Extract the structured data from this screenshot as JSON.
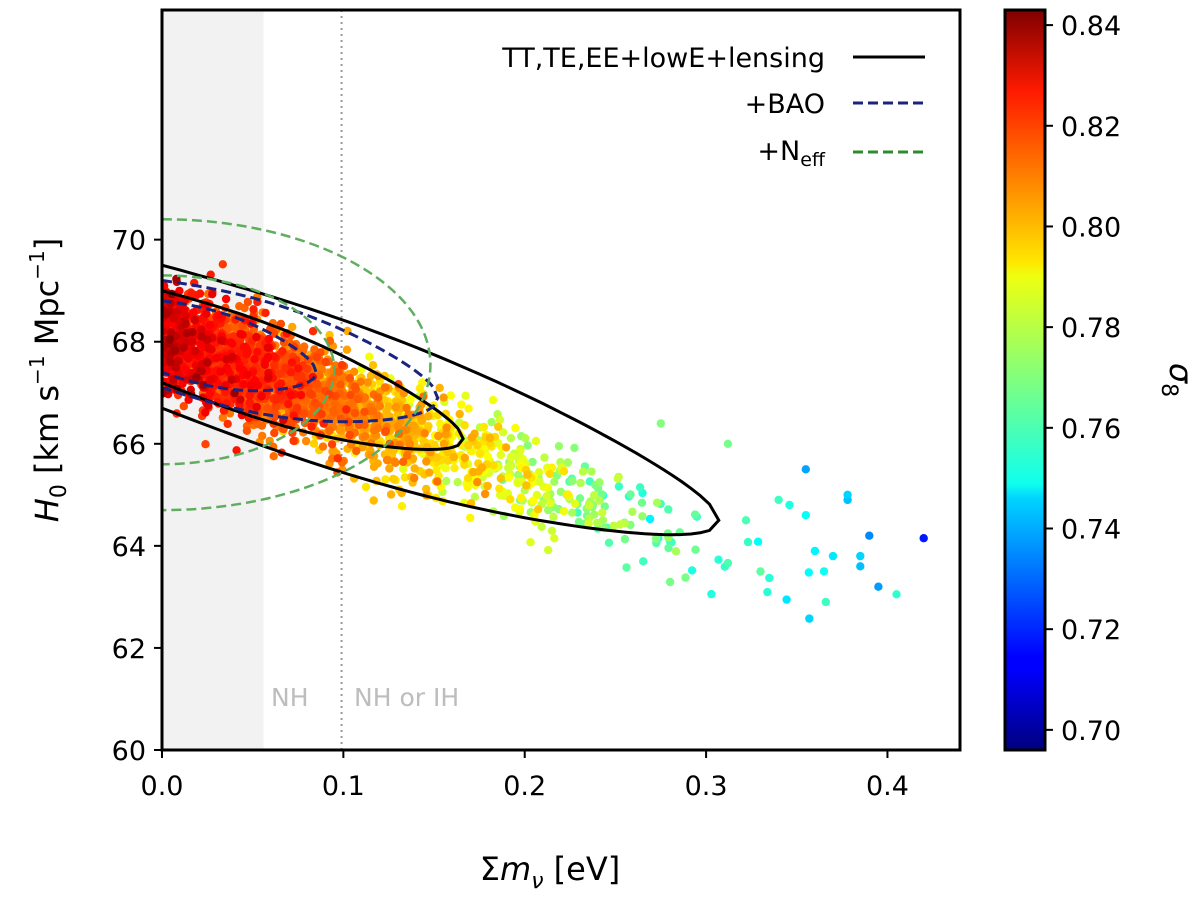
{
  "chart_data": {
    "type": "scatter",
    "xlabel_prefix": "Σ",
    "xlabel_var": "m",
    "xlabel_sub": "ν",
    "xlabel_unit": " [eV]",
    "ylabel_var": "H",
    "ylabel_sub": "0",
    "ylabel_unit": " [km s",
    "ylabel_exp1": "−1",
    "ylabel_mid": " Mpc",
    "ylabel_exp2": "−1",
    "ylabel_close": "]",
    "xlim": [
      0.0,
      0.44
    ],
    "ylim": [
      60,
      74.5
    ],
    "xticks": [
      0.0,
      0.1,
      0.2,
      0.3,
      0.4
    ],
    "xtick_labels": [
      "0.0",
      "0.1",
      "0.2",
      "0.3",
      "0.4"
    ],
    "yticks": [
      60,
      62,
      64,
      66,
      68,
      70
    ],
    "ytick_labels": [
      "60",
      "62",
      "64",
      "66",
      "68",
      "70"
    ],
    "colorbar": {
      "label": "σ",
      "label_sub": "8",
      "range": [
        0.696,
        0.843
      ],
      "ticks": [
        0.7,
        0.72,
        0.74,
        0.76,
        0.78,
        0.8,
        0.82,
        0.84
      ],
      "tick_labels": [
        "0.70",
        "0.72",
        "0.74",
        "0.76",
        "0.78",
        "0.80",
        "0.82",
        "0.84"
      ],
      "colormap": "jet"
    },
    "shaded_region": {
      "x_range": [
        0.0,
        0.056
      ],
      "label": "NH",
      "color": "#f2f2f2"
    },
    "vline": {
      "x": 0.099,
      "label": "NH or IH",
      "color": "#999999"
    },
    "legend": [
      {
        "label": "TT,TE,EE+lowE+lensing",
        "color": "#000000",
        "style": "solid"
      },
      {
        "label": "+BAO",
        "color": "#1a237e",
        "style": "dashed"
      },
      {
        "label": "+N",
        "label_sub": "eff",
        "color": "#2e8b2e",
        "style": "dashed"
      }
    ],
    "contours": [
      {
        "series": "TT,TE,EE+lowE+lensing",
        "level": "68%",
        "x_min": 0.0,
        "x_tip": 0.166,
        "y_tip": 66.1,
        "y_top0": 69.0,
        "y_bot0": 67.2,
        "x_shoulder": 0.04
      },
      {
        "series": "TT,TE,EE+lowE+lensing",
        "level": "95%",
        "x_min": 0.0,
        "x_tip": 0.307,
        "y_tip": 64.5,
        "y_top0": 69.5,
        "y_bot0": 66.7,
        "x_shoulder": 0.06
      },
      {
        "series": "+BAO",
        "level": "68%",
        "x_min": 0.0,
        "x_tip": 0.085,
        "y_tip": 67.4,
        "y_top0": 68.8,
        "y_bot0": 67.4,
        "x_shoulder": 0.03
      },
      {
        "series": "+BAO",
        "level": "95%",
        "x_min": 0.0,
        "x_tip": 0.152,
        "y_tip": 66.9,
        "y_top0": 69.2,
        "y_bot0": 67.1,
        "x_shoulder": 0.04
      },
      {
        "series": "+Neff",
        "level": "68%",
        "x_min": 0.0,
        "x_tip": 0.095,
        "y_tip": 67.5,
        "y_top0": 69.3,
        "y_bot0": 65.6,
        "x_shoulder": 0.04
      },
      {
        "series": "+Neff",
        "level": "95%",
        "x_min": 0.0,
        "x_tip": 0.148,
        "y_tip": 67.4,
        "y_top0": 70.4,
        "y_bot0": 64.7,
        "x_shoulder": 0.05
      }
    ],
    "samples": {
      "count": 2600,
      "description": "MCMC samples coloured by sigma8, concentrated at low sum m_nu with H0 decreasing as sum m_nu increases",
      "relation": {
        "h0_at_zero": 68.1,
        "h0_slope_per_eV": -13.5,
        "s8_at_zero": 0.824,
        "s8_slope_per_eV": -0.21
      },
      "outliers": [
        [
          0.322,
          64.5,
          0.762
        ],
        [
          0.346,
          64.8,
          0.755
        ],
        [
          0.355,
          65.5,
          0.738
        ],
        [
          0.37,
          63.8,
          0.748
        ],
        [
          0.378,
          65.0,
          0.745
        ],
        [
          0.385,
          63.6,
          0.742
        ],
        [
          0.39,
          64.2,
          0.734
        ],
        [
          0.395,
          63.2,
          0.737
        ],
        [
          0.405,
          63.05,
          0.758
        ],
        [
          0.42,
          64.15,
          0.718
        ],
        [
          0.365,
          63.5,
          0.753
        ],
        [
          0.36,
          63.9,
          0.75
        ],
        [
          0.33,
          63.5,
          0.765
        ],
        [
          0.34,
          64.9,
          0.76
        ],
        [
          0.366,
          62.9,
          0.76
        ],
        [
          0.378,
          64.9,
          0.742
        ],
        [
          0.385,
          63.8,
          0.745
        ],
        [
          0.355,
          64.6,
          0.752
        ],
        [
          0.312,
          66.0,
          0.768
        ],
        [
          0.275,
          66.4,
          0.77
        ]
      ]
    }
  }
}
